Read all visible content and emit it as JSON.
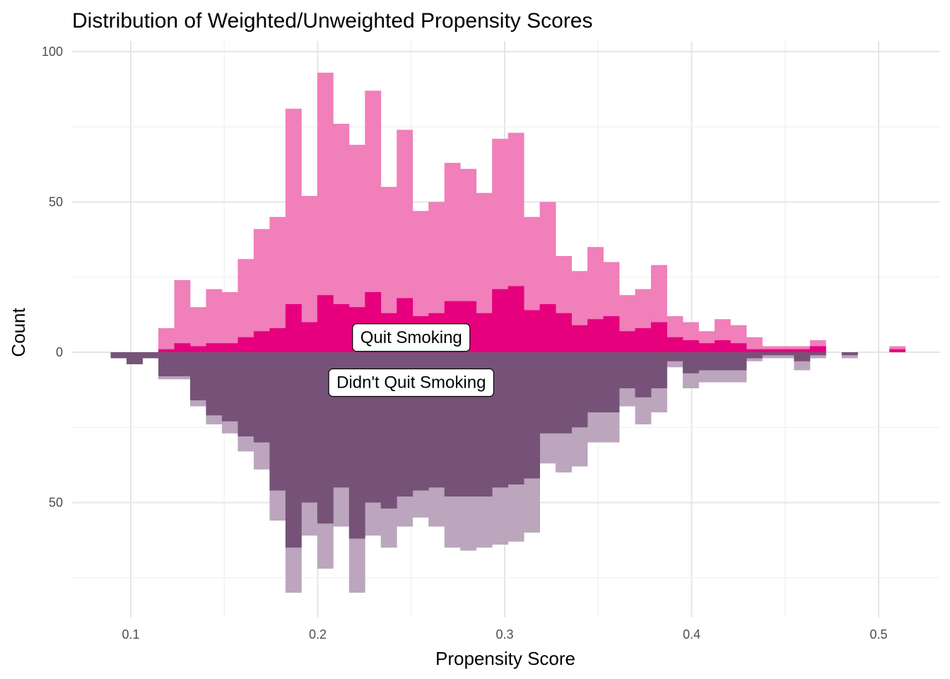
{
  "chart_data": {
    "type": "bar",
    "title": "Distribution of Weighted/Unweighted Propensity Scores",
    "xlabel": "Propensity Score",
    "ylabel": "Count",
    "xlim": [
      0.07,
      0.53
    ],
    "ylim": [
      -80,
      100
    ],
    "x_ticks": [
      0.1,
      0.2,
      0.3,
      0.4,
      0.5
    ],
    "x_tick_labels": [
      "0.1",
      "0.2",
      "0.3",
      "0.4",
      "0.5"
    ],
    "y_ticks": [
      100,
      50,
      0,
      -50
    ],
    "y_tick_labels": [
      "100",
      "50",
      "0",
      "50"
    ],
    "grid": true,
    "bin_width": 0.0085,
    "bin_centers": [
      0.0935,
      0.102,
      0.1105,
      0.119,
      0.1275,
      0.136,
      0.1445,
      0.153,
      0.1615,
      0.17,
      0.1785,
      0.187,
      0.1955,
      0.204,
      0.2125,
      0.221,
      0.2295,
      0.238,
      0.2465,
      0.255,
      0.2635,
      0.272,
      0.2805,
      0.289,
      0.2975,
      0.306,
      0.3145,
      0.323,
      0.3315,
      0.34,
      0.3485,
      0.357,
      0.3655,
      0.374,
      0.3825,
      0.391,
      0.3995,
      0.408,
      0.4165,
      0.425,
      0.4335,
      0.442,
      0.4505,
      0.459,
      0.4675,
      0.476,
      0.4845,
      0.493,
      0.5015,
      0.51
    ],
    "series": [
      {
        "name": "",
        "group": "quit",
        "kind": "weighted",
        "color": "#f07fba",
        "values": [
          0,
          0,
          0,
          8,
          24,
          15,
          21,
          20,
          31,
          41,
          45,
          81,
          52,
          93,
          76,
          69,
          87,
          55,
          74,
          47,
          50,
          63,
          61,
          53,
          71,
          73,
          45,
          50,
          32,
          27,
          35,
          30,
          19,
          21,
          29,
          12,
          10,
          7,
          11,
          9,
          5,
          2,
          2,
          2,
          4,
          0,
          0,
          0,
          0,
          2
        ]
      },
      {
        "name": "",
        "group": "quit",
        "kind": "unweighted",
        "color": "#e6007e",
        "values": [
          0,
          0,
          0,
          1,
          3,
          2,
          3,
          3,
          5,
          7,
          8,
          16,
          10,
          19,
          16,
          15,
          20,
          13,
          18,
          12,
          13,
          17,
          17,
          13,
          21,
          22,
          14,
          16,
          13,
          9,
          11,
          12,
          7,
          8,
          10,
          5,
          4,
          3,
          4,
          3,
          1,
          1,
          1,
          1,
          2,
          0,
          0,
          0,
          0,
          1
        ]
      },
      {
        "name": "",
        "group": "didnt_quit",
        "kind": "weighted",
        "color": "#bba6bd",
        "values": [
          2,
          4,
          2,
          9,
          9,
          18,
          24,
          27,
          33,
          39,
          56,
          80,
          61,
          72,
          58,
          80,
          61,
          65,
          58,
          55,
          58,
          65,
          66,
          65,
          64,
          63,
          60,
          37,
          40,
          38,
          30,
          30,
          18,
          24,
          20,
          5,
          12,
          10,
          10,
          10,
          3,
          2,
          2,
          6,
          2,
          0,
          2,
          0,
          0,
          0
        ]
      },
      {
        "name": "",
        "group": "didnt_quit",
        "kind": "unweighted",
        "color": "#765278",
        "values": [
          2,
          4,
          2,
          8,
          8,
          16,
          21,
          23,
          28,
          30,
          46,
          65,
          50,
          57,
          45,
          62,
          50,
          52,
          48,
          46,
          45,
          48,
          48,
          48,
          45,
          44,
          42,
          27,
          27,
          25,
          20,
          20,
          12,
          15,
          12,
          3,
          7,
          6,
          6,
          6,
          2,
          1,
          1,
          3,
          1,
          0,
          1,
          0,
          0,
          0
        ]
      }
    ],
    "annotations": [
      {
        "text": "Quit Smoking",
        "x": 0.25,
        "y": 5
      },
      {
        "text": "Didn't Quit Smoking",
        "x": 0.25,
        "y": -10
      }
    ]
  }
}
